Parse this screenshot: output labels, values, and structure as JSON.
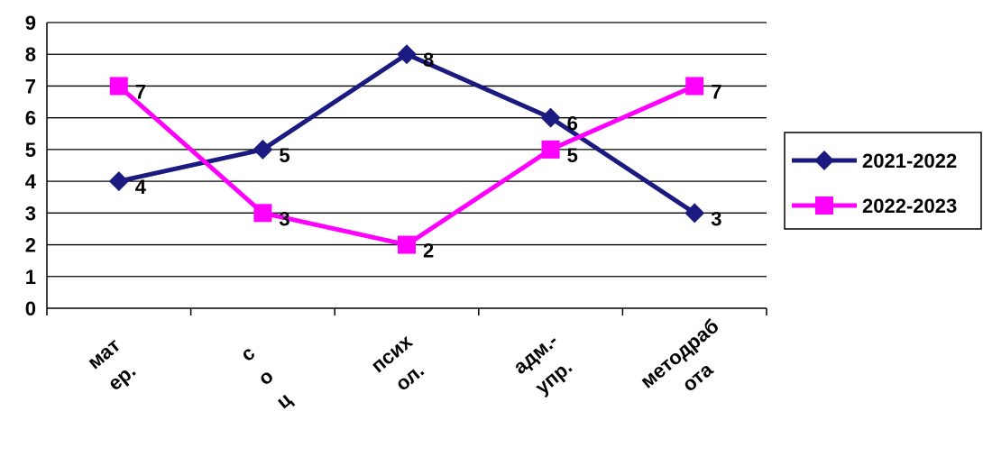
{
  "chart_data": {
    "type": "line",
    "title": "",
    "xlabel": "",
    "ylabel": "",
    "categories": [
      [
        "мат",
        "ер."
      ],
      [
        "с",
        "о",
        "ц"
      ],
      [
        "псих",
        "ол."
      ],
      [
        "адм.-",
        "упр."
      ],
      [
        "методраб",
        "ота"
      ]
    ],
    "ylim": [
      0,
      9
    ],
    "yticks": [
      "0",
      "1",
      "2",
      "3",
      "4",
      "5",
      "6",
      "7",
      "8",
      "9"
    ],
    "grid": true,
    "legend_position": "right",
    "series": [
      {
        "name": "2021-2022",
        "values": [
          4,
          5,
          8,
          6,
          3
        ],
        "labels": [
          "4",
          "5",
          "8",
          "6",
          "3"
        ],
        "color": "#1a1a80",
        "marker": "diamond"
      },
      {
        "name": "2022-2023",
        "values": [
          7,
          3,
          2,
          5,
          7
        ],
        "labels": [
          "7",
          "3",
          "2",
          "5",
          "7"
        ],
        "color": "#ff00ff",
        "marker": "square"
      }
    ]
  }
}
